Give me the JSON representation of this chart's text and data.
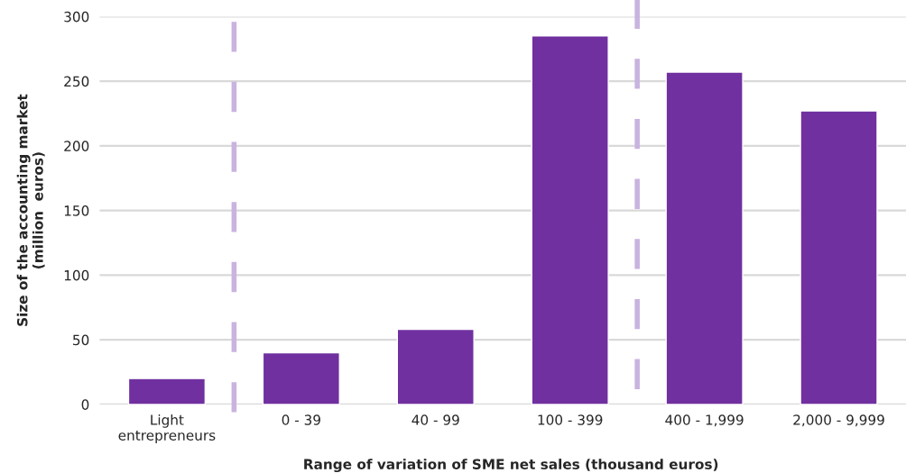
{
  "chart_data": {
    "type": "bar",
    "categories": [
      "Light\nentrepreneurs",
      "0 - 39",
      "40 - 99",
      "100 - 399",
      "400 - 1,999",
      "2,000 - 9,999"
    ],
    "values": [
      20,
      40,
      58,
      285,
      257,
      227
    ],
    "color": "#7030a0",
    "xlabel": "Range of variation of SME net sales (thousand euros)",
    "ylabel": "Size of the accounting market\n(million  euros)",
    "ylim": [
      0,
      300
    ],
    "yticks": [
      0,
      50,
      100,
      150,
      200,
      250,
      300
    ],
    "grid": "y",
    "legend": false
  }
}
